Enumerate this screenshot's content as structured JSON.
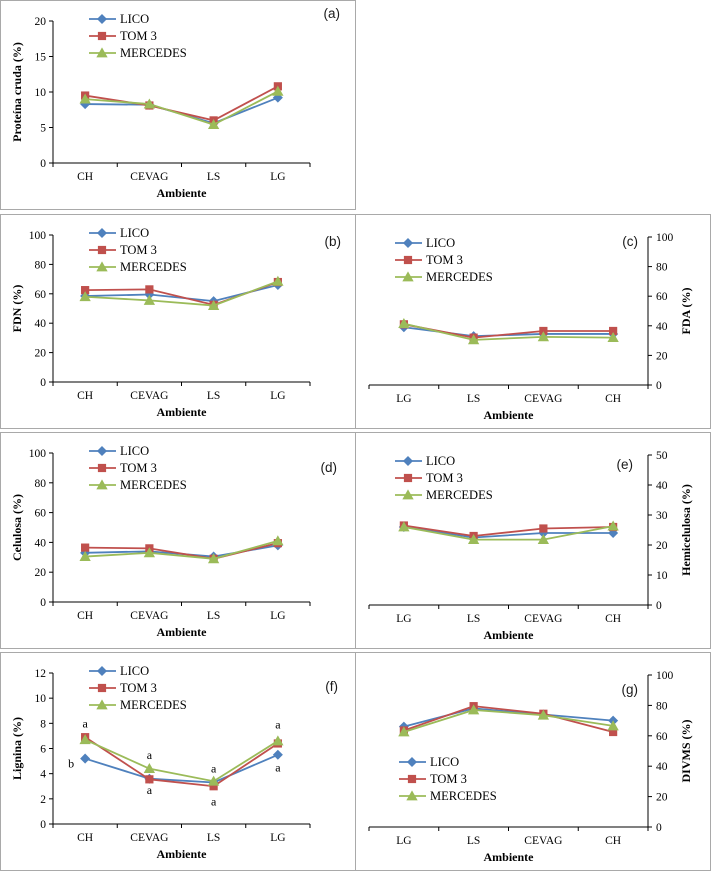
{
  "panel_border_color": "#a9a9a9",
  "series_styles": [
    {
      "name": "LICO",
      "color": "#4F81BD",
      "marker": "diamond"
    },
    {
      "name": "TOM 3",
      "color": "#C0504D",
      "marker": "square"
    },
    {
      "name": "MERCEDES",
      "color": "#9BBB59",
      "marker": "triangle"
    }
  ],
  "chart_data": [
    {
      "id": "a",
      "panel_label": "(a)",
      "type": "line",
      "xlabel": "Ambiente",
      "ylabel": "Proteína cruda (%)",
      "axis_side": "left",
      "ylim": [
        0,
        20
      ],
      "ytick_step": 5,
      "grid": false,
      "legend_pos": "top-inset",
      "categories": [
        "CH",
        "CEVAG",
        "LS",
        "LG"
      ],
      "series": [
        {
          "name": "LICO",
          "values": [
            8.3,
            8.2,
            5.6,
            9.2
          ]
        },
        {
          "name": "TOM 3",
          "values": [
            9.5,
            8.1,
            6.0,
            10.8
          ]
        },
        {
          "name": "MERCEDES",
          "values": [
            9.0,
            8.3,
            5.4,
            10.1
          ]
        }
      ]
    },
    {
      "id": "b",
      "panel_label": "(b)",
      "type": "line",
      "xlabel": "Ambiente",
      "ylabel": "FDN (%)",
      "axis_side": "left",
      "ylim": [
        0,
        100
      ],
      "ytick_step": 20,
      "grid": false,
      "legend_pos": "top-inset",
      "categories": [
        "CH",
        "CEVAG",
        "LS",
        "LG"
      ],
      "series": [
        {
          "name": "LICO",
          "values": [
            58.5,
            59.5,
            55.0,
            66.0
          ]
        },
        {
          "name": "TOM 3",
          "values": [
            62.5,
            63.0,
            52.5,
            68.0
          ]
        },
        {
          "name": "MERCEDES",
          "values": [
            58.0,
            55.5,
            52.0,
            68.5
          ]
        }
      ]
    },
    {
      "id": "c",
      "panel_label": "(c)",
      "type": "line",
      "xlabel": "Ambiente",
      "ylabel": "FDA (%)",
      "axis_side": "right",
      "ylim": [
        0,
        100
      ],
      "ytick_step": 20,
      "grid": false,
      "legend_pos": "top-inset",
      "categories": [
        "LG",
        "LS",
        "CEVAG",
        "CH"
      ],
      "series": [
        {
          "name": "LICO",
          "values": [
            39.0,
            33.0,
            34.5,
            34.5
          ]
        },
        {
          "name": "TOM 3",
          "values": [
            41.0,
            32.0,
            36.5,
            36.5
          ]
        },
        {
          "name": "MERCEDES",
          "values": [
            41.5,
            30.5,
            32.5,
            32.0
          ]
        }
      ]
    },
    {
      "id": "d",
      "panel_label": "(d)",
      "type": "line",
      "xlabel": "Ambiente",
      "ylabel": "Celulosa (%)",
      "axis_side": "left",
      "ylim": [
        0,
        100
      ],
      "ytick_step": 20,
      "grid": false,
      "legend_pos": "top-inset",
      "categories": [
        "CH",
        "CEVAG",
        "LS",
        "LG"
      ],
      "series": [
        {
          "name": "LICO",
          "values": [
            33.0,
            34.0,
            30.5,
            38.0
          ]
        },
        {
          "name": "TOM 3",
          "values": [
            36.5,
            36.0,
            29.0,
            39.5
          ]
        },
        {
          "name": "MERCEDES",
          "values": [
            30.5,
            33.0,
            29.0,
            41.0
          ]
        }
      ]
    },
    {
      "id": "e",
      "panel_label": "(e)",
      "type": "line",
      "xlabel": "Ambiente",
      "ylabel": "Hemicelulosa (%)",
      "axis_side": "right",
      "ylim": [
        0,
        50
      ],
      "ytick_step": 10,
      "grid": false,
      "legend_pos": "top-inset",
      "categories": [
        "LG",
        "LS",
        "CEVAG",
        "CH"
      ],
      "series": [
        {
          "name": "LICO",
          "values": [
            26.0,
            22.5,
            24.0,
            24.0
          ]
        },
        {
          "name": "TOM 3",
          "values": [
            26.5,
            23.0,
            25.5,
            26.0
          ]
        },
        {
          "name": "MERCEDES",
          "values": [
            26.0,
            21.8,
            21.8,
            26.3
          ]
        }
      ]
    },
    {
      "id": "f",
      "panel_label": "(f)",
      "type": "line",
      "xlabel": "Ambiente",
      "ylabel": "Lignina (%)",
      "axis_side": "left",
      "ylim": [
        0,
        12
      ],
      "ytick_step": 2,
      "grid": false,
      "legend_pos": "top-inset",
      "categories": [
        "CH",
        "CEVAG",
        "LS",
        "LG"
      ],
      "series": [
        {
          "name": "LICO",
          "values": [
            5.2,
            3.6,
            3.3,
            5.5
          ]
        },
        {
          "name": "TOM 3",
          "values": [
            6.9,
            3.55,
            3.0,
            6.4
          ]
        },
        {
          "name": "MERCEDES",
          "values": [
            6.7,
            4.4,
            3.4,
            6.6
          ]
        }
      ],
      "annotations": [
        {
          "ci": 0,
          "y": 8.0,
          "text": "a"
        },
        {
          "ci": 0,
          "y": 4.8,
          "text": "b",
          "dx": -14
        },
        {
          "ci": 1,
          "y": 5.5,
          "text": "a"
        },
        {
          "ci": 1,
          "y": 2.7,
          "text": "a"
        },
        {
          "ci": 2,
          "y": 4.4,
          "text": "a"
        },
        {
          "ci": 2,
          "y": 1.8,
          "text": "a"
        },
        {
          "ci": 3,
          "y": 7.9,
          "text": "a"
        },
        {
          "ci": 3,
          "y": 4.5,
          "text": "a"
        }
      ]
    },
    {
      "id": "g",
      "panel_label": "(g)",
      "type": "line",
      "xlabel": "Ambiente",
      "ylabel": "DIVMS (%)",
      "axis_side": "right",
      "ylim": [
        0,
        100
      ],
      "ytick_step": 20,
      "grid": false,
      "legend_pos": "bottom-inset",
      "categories": [
        "LG",
        "LS",
        "CEVAG",
        "CH"
      ],
      "series": [
        {
          "name": "LICO",
          "values": [
            66.0,
            78.0,
            74.0,
            70.0
          ]
        },
        {
          "name": "TOM 3",
          "values": [
            63.5,
            79.5,
            74.5,
            62.5
          ]
        },
        {
          "name": "MERCEDES",
          "values": [
            62.5,
            77.0,
            73.5,
            66.5
          ]
        }
      ]
    }
  ]
}
